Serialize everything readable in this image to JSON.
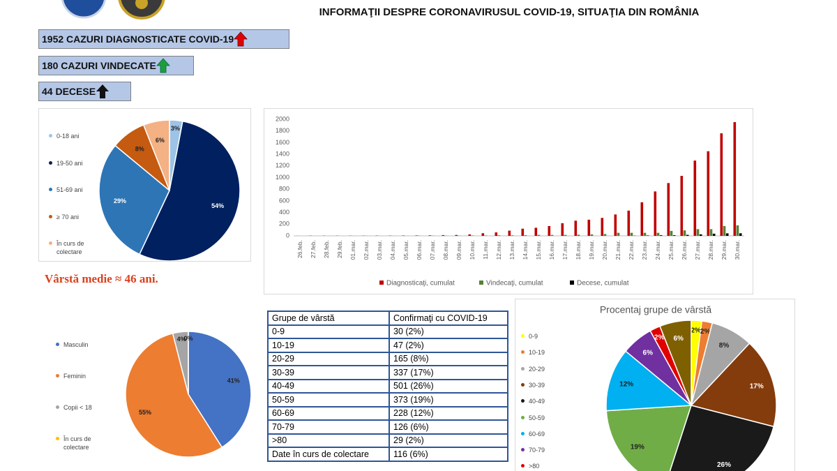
{
  "header": {
    "title": "INFORMAŢII DESPRE CORONAVIRUSUL COVID-19, SITUAŢIA DIN ROMÂNIA"
  },
  "stats": [
    "1952 CAZURI DIAGNOSTICATE COVID-19",
    "180 CAZURI VINDECATE",
    "44 DECESE"
  ],
  "note": "Vârstă medie ≈ 46 ani.",
  "table": {
    "header": [
      "Grupe de vârstă",
      "Confirmaţi cu COVID-19"
    ],
    "rows": [
      [
        "0-9",
        "30 (2%)"
      ],
      [
        "10-19",
        "47 (2%)"
      ],
      [
        "20-29",
        "165 (8%)"
      ],
      [
        "30-39",
        "337 (17%)"
      ],
      [
        "40-49",
        "501 (26%)"
      ],
      [
        "50-59",
        "373 (19%)"
      ],
      [
        "60-69",
        "228 (12%)"
      ],
      [
        "70-79",
        "126 (6%)"
      ],
      [
        ">80",
        "29 (2%)"
      ],
      [
        "Date în curs de colectare",
        "116 (6%)"
      ]
    ]
  },
  "chart_data": [
    {
      "type": "pie",
      "categories": [
        "0-18 ani",
        "19-50 ani",
        "51-69 ani",
        "≥ 70 ani",
        "În curs de colectare"
      ],
      "values": [
        3,
        54,
        29,
        8,
        6
      ],
      "value_labels": [
        "3%",
        "54%",
        "29%",
        "8%",
        "6%"
      ],
      "colors": [
        "#9dc3e6",
        "#002060",
        "#2e75b6",
        "#c55a11",
        "#f4b183"
      ]
    },
    {
      "type": "bar",
      "categories": [
        "26.feb.",
        "27.feb.",
        "28.feb.",
        "29.feb.",
        "01.mar.",
        "02.mar.",
        "03.mar.",
        "04.mar.",
        "05.mar.",
        "06.mar.",
        "07.mar.",
        "08.mar.",
        "09.mar.",
        "10.mar.",
        "11.mar.",
        "12.mar.",
        "13.mar.",
        "14.mar.",
        "15.mar.",
        "16.mar.",
        "17.mar.",
        "18.mar.",
        "19.mar.",
        "20.mar.",
        "21.mar.",
        "22.mar.",
        "23.mar.",
        "24.mar.",
        "25.mar.",
        "26.mar.",
        "27.mar.",
        "28.mar.",
        "29.mar.",
        "30.mar."
      ],
      "series": [
        {
          "name": "Diagnosticaţi, cumulat",
          "color": "#c00000",
          "values": [
            1,
            3,
            3,
            3,
            3,
            3,
            4,
            4,
            6,
            7,
            9,
            13,
            15,
            25,
            45,
            59,
            89,
            123,
            139,
            168,
            217,
            260,
            277,
            308,
            367,
            433,
            576,
            762,
            906,
            1029,
            1292,
            1452,
            1760,
            1952
          ]
        },
        {
          "name": "Vindecaţi, cumulat",
          "color": "#548235",
          "values": [
            0,
            0,
            0,
            0,
            1,
            1,
            1,
            1,
            1,
            3,
            3,
            3,
            3,
            6,
            6,
            9,
            9,
            11,
            16,
            16,
            16,
            19,
            25,
            31,
            52,
            52,
            52,
            52,
            85,
            94,
            115,
            115,
            169,
            180
          ]
        },
        {
          "name": "Decese, cumulat",
          "color": "#000000",
          "values": [
            0,
            0,
            0,
            0,
            0,
            0,
            0,
            0,
            0,
            0,
            0,
            0,
            0,
            0,
            0,
            0,
            0,
            0,
            0,
            0,
            0,
            0,
            0,
            0,
            0,
            3,
            7,
            11,
            11,
            17,
            26,
            37,
            43,
            44
          ]
        }
      ],
      "ylim": [
        0,
        2000
      ],
      "yticks": [
        0,
        200,
        400,
        600,
        800,
        1000,
        1200,
        1400,
        1600,
        1800,
        2000
      ],
      "grid": false,
      "legend": "bottom"
    },
    {
      "type": "pie",
      "categories": [
        "Masculin",
        "Feminin",
        "Copii < 18",
        "În curs de colectare"
      ],
      "values": [
        41,
        55,
        4,
        0
      ],
      "value_labels": [
        "41%",
        "55%",
        "4%",
        "0%"
      ],
      "colors": [
        "#4472c4",
        "#ed7d31",
        "#a5a5a5",
        "#ffc000"
      ]
    },
    {
      "type": "pie",
      "title": "Procentaj grupe de vârstă",
      "categories": [
        "0-9",
        "10-19",
        "20-29",
        "30-39",
        "40-49",
        "50-59",
        "60-69",
        "70-79",
        ">80",
        null
      ],
      "values": [
        2,
        2,
        8,
        17,
        26,
        19,
        12,
        6,
        2,
        6
      ],
      "value_labels": [
        "2%",
        "2%",
        "8%",
        "17%",
        "26%",
        "19%",
        "12%",
        "6%",
        "2%",
        "6%"
      ],
      "colors": [
        "#ffff00",
        "#ed7d31",
        "#a5a5a5",
        "#843c0c",
        "#1a1a1a",
        "#70ad47",
        "#00b0f0",
        "#7030a0",
        "#e00000",
        "#7f6000"
      ]
    }
  ]
}
